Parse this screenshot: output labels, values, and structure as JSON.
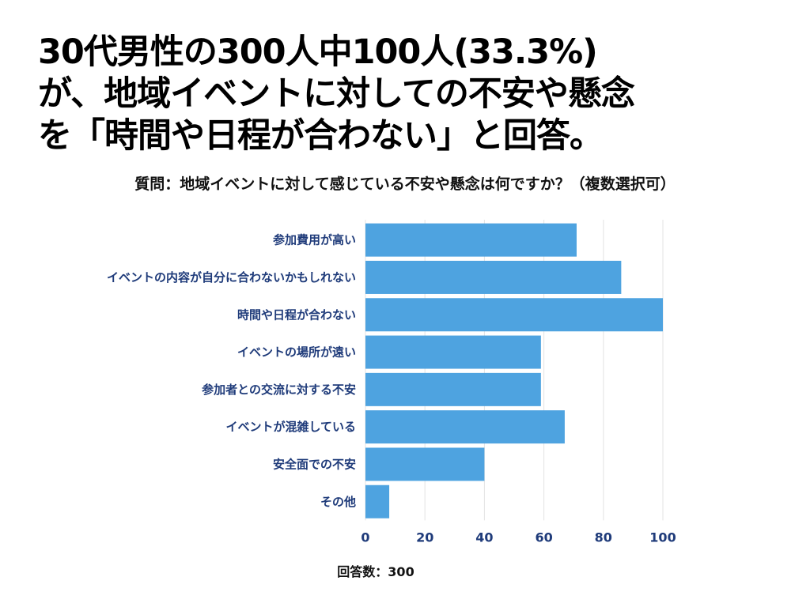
{
  "headline": {
    "line1": "30代男性の300人中100人(33.3%)",
    "line2": "が、地域イベントに対しての不安や懸念",
    "line3": "を「時間や日程が合わない」と回答。"
  },
  "question": "質問：地域イベントに対して感じている不安や懸念は何ですか？（複数選択可）",
  "footer_note": "回答数：300",
  "colors": {
    "bar": "#4ea3e0",
    "label": "#1f3b7a",
    "grid": "#e3e3e3"
  },
  "chart_data": {
    "type": "bar",
    "orientation": "horizontal",
    "categories": [
      "参加費用が高い",
      "イベントの内容が自分に合わないかもしれない",
      "時間や日程が合わない",
      "イベントの場所が遠い",
      "参加者との交流に対する不安",
      "イベントが混雑している",
      "安全面での不安",
      "その他"
    ],
    "values": [
      71,
      86,
      100,
      59,
      59,
      67,
      40,
      8
    ],
    "xlim": [
      0,
      100
    ],
    "xticks": [
      0,
      20,
      40,
      60,
      80,
      100
    ],
    "grid": true,
    "legend": "none"
  }
}
